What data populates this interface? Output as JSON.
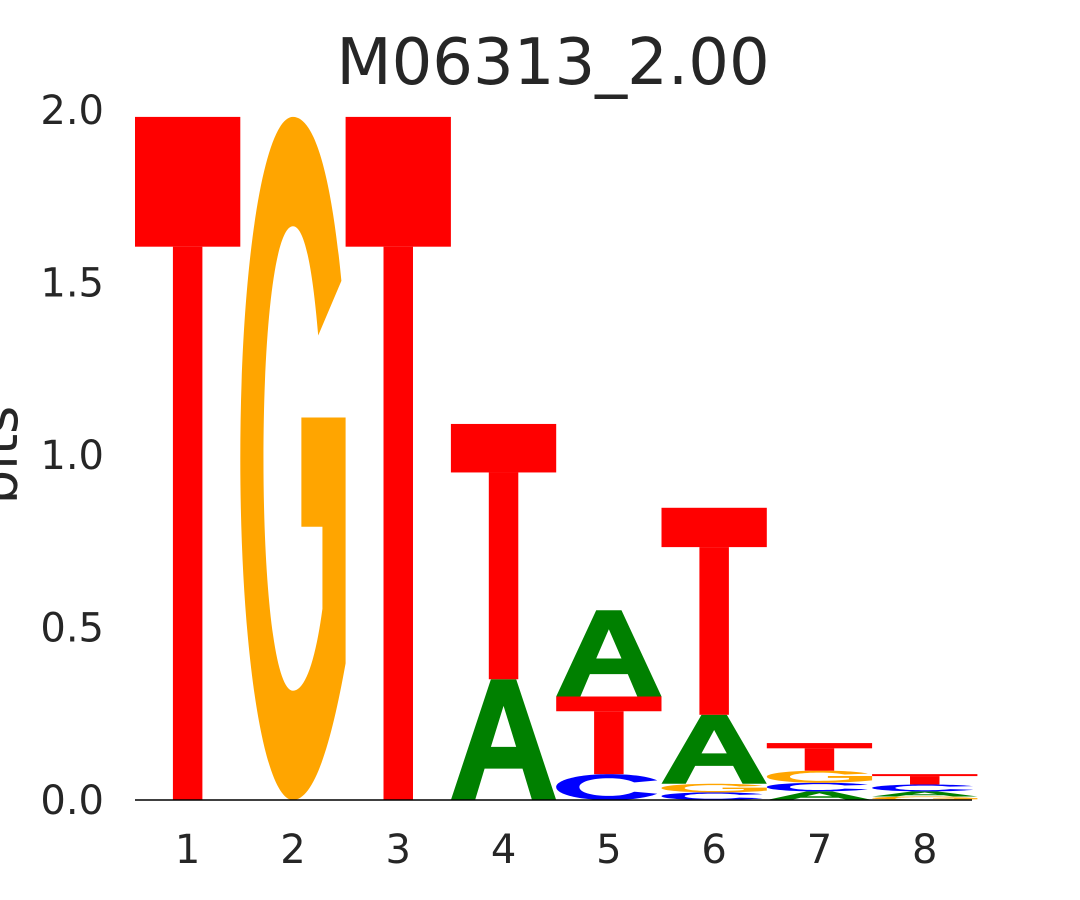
{
  "chart_data": {
    "type": "sequence-logo",
    "title": "M06313_2.00",
    "ylabel": "bits",
    "xlabel": "",
    "ylim": [
      0,
      2.0
    ],
    "yticks": [
      "0.0",
      "0.5",
      "1.0",
      "1.5",
      "2.0"
    ],
    "grid": false,
    "legend": "none",
    "categories": [
      "1",
      "2",
      "3",
      "4",
      "5",
      "6",
      "7",
      "8"
    ],
    "colors": {
      "A": "#008000",
      "C": "#0000ff",
      "G": "#ffa500",
      "T": "#ff0000"
    },
    "positions": [
      {
        "label": "1",
        "stack": [
          {
            "letter": "T",
            "bits": 1.98
          }
        ]
      },
      {
        "label": "2",
        "stack": [
          {
            "letter": "G",
            "bits": 1.98
          }
        ]
      },
      {
        "label": "3",
        "stack": [
          {
            "letter": "T",
            "bits": 1.98
          }
        ]
      },
      {
        "label": "4",
        "stack": [
          {
            "letter": "A",
            "bits": 0.35
          },
          {
            "letter": "T",
            "bits": 0.74
          }
        ]
      },
      {
        "label": "5",
        "stack": [
          {
            "letter": "C",
            "bits": 0.075
          },
          {
            "letter": "T",
            "bits": 0.225
          },
          {
            "letter": "A",
            "bits": 0.25
          }
        ]
      },
      {
        "label": "6",
        "stack": [
          {
            "letter": "C",
            "bits": 0.022
          },
          {
            "letter": "G",
            "bits": 0.025
          },
          {
            "letter": "A",
            "bits": 0.2
          },
          {
            "letter": "T",
            "bits": 0.6
          }
        ]
      },
      {
        "label": "7",
        "stack": [
          {
            "letter": "A",
            "bits": 0.025
          },
          {
            "letter": "C",
            "bits": 0.025
          },
          {
            "letter": "G",
            "bits": 0.035
          },
          {
            "letter": "T",
            "bits": 0.08
          }
        ]
      },
      {
        "label": "8",
        "stack": [
          {
            "letter": "G",
            "bits": 0.01
          },
          {
            "letter": "A",
            "bits": 0.015
          },
          {
            "letter": "C",
            "bits": 0.02
          },
          {
            "letter": "T",
            "bits": 0.03
          }
        ]
      }
    ]
  }
}
